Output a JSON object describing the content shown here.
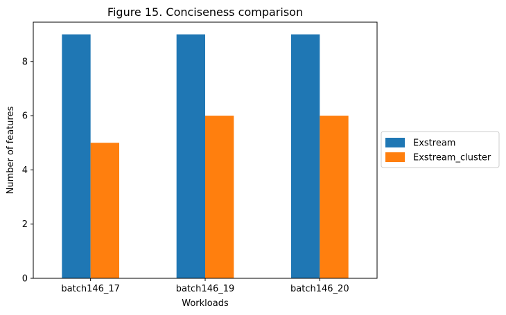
{
  "chart_data": {
    "type": "bar",
    "title": "Figure 15. Conciseness comparison",
    "xlabel": "Workloads",
    "ylabel": "Number of features",
    "categories": [
      "batch146_17",
      "batch146_19",
      "batch146_20"
    ],
    "series": [
      {
        "name": "Exstream",
        "values": [
          9,
          9,
          9
        ],
        "color": "#1f77b4"
      },
      {
        "name": "Exstream_cluster",
        "values": [
          5,
          6,
          6
        ],
        "color": "#ff7f0e"
      }
    ],
    "ylim": [
      0,
      9.45
    ],
    "yticks": [
      0,
      2,
      4,
      6,
      8
    ],
    "grid": false,
    "legend_position": "right-outside"
  }
}
